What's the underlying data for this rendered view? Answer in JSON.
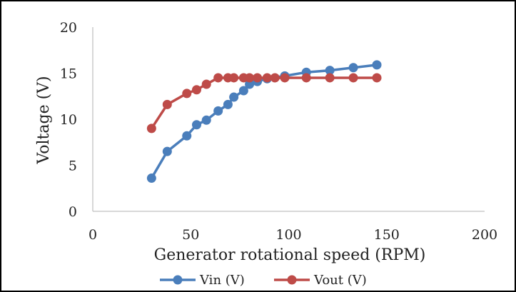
{
  "chart_data": {
    "type": "scatter",
    "xlabel": "Generator rotational speed (RPM)",
    "ylabel": "Voltage  (V)",
    "xlim": [
      0,
      200
    ],
    "ylim": [
      0,
      20
    ],
    "xticks": [
      0,
      50,
      100,
      150,
      200
    ],
    "yticks": [
      0,
      5,
      10,
      15,
      20
    ],
    "grid": false,
    "legend": "bottom",
    "markers": "circles with connecting lines",
    "series": [
      {
        "name": "Vin (V)",
        "color": "#4a7ebb",
        "x": [
          30,
          38,
          48,
          53,
          58,
          64,
          69,
          72,
          77,
          80,
          84,
          89,
          98,
          109,
          121,
          133,
          145
        ],
        "y": [
          3.6,
          6.5,
          8.2,
          9.4,
          9.9,
          10.9,
          11.6,
          12.4,
          13.1,
          13.8,
          14.1,
          14.4,
          14.7,
          15.1,
          15.3,
          15.6,
          15.9
        ]
      },
      {
        "name": "Vout (V)",
        "color": "#be4b48",
        "x": [
          30,
          38,
          48,
          53,
          58,
          64,
          69,
          72,
          77,
          80,
          84,
          89,
          93,
          98,
          109,
          121,
          133,
          145
        ],
        "y": [
          9.0,
          11.6,
          12.8,
          13.2,
          13.8,
          14.5,
          14.5,
          14.5,
          14.5,
          14.5,
          14.5,
          14.5,
          14.5,
          14.5,
          14.5,
          14.5,
          14.5,
          14.5
        ]
      }
    ]
  }
}
